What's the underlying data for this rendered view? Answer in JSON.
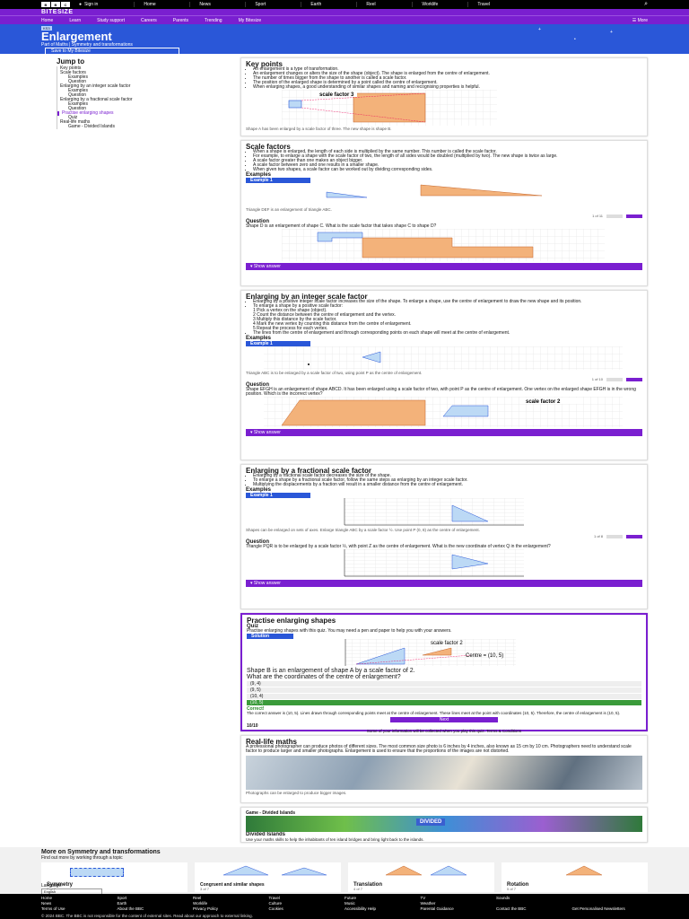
{
  "topbar": {
    "logo": [
      "B",
      "B",
      "C"
    ],
    "signin": "Sign in",
    "nav": [
      "Home",
      "News",
      "Sport",
      "Earth",
      "Reel",
      "Worklife",
      "Travel"
    ],
    "search_icon": "search-icon"
  },
  "bitesize": {
    "logo": "BITESIZE"
  },
  "subnav": {
    "items": [
      "Home",
      "Learn",
      "Study support",
      "Careers",
      "Parents",
      "Trending",
      "My Bitesize"
    ],
    "more": "More"
  },
  "hero": {
    "badge": "KS3",
    "title": "Enlargement",
    "breadcrumb": "Part of   Maths   |   Symmetry and transformations",
    "save": "Save to My Bitesize"
  },
  "sidebar": {
    "heading": "Jump to",
    "items": [
      {
        "label": "Key points",
        "sub": false
      },
      {
        "label": "Scale factors",
        "sub": false
      },
      {
        "label": "Examples",
        "sub": true
      },
      {
        "label": "Question",
        "sub": true
      },
      {
        "label": "Enlarging by an integer scale factor",
        "sub": false
      },
      {
        "label": "Examples",
        "sub": true
      },
      {
        "label": "Question",
        "sub": true
      },
      {
        "label": "Enlarging by a fractional scale factor",
        "sub": false
      },
      {
        "label": "Examples",
        "sub": true
      },
      {
        "label": "Question",
        "sub": true
      },
      {
        "label": "Practise enlarging shapes",
        "sub": false,
        "active": true
      },
      {
        "label": "Quiz",
        "sub": true
      },
      {
        "label": "Real-life maths",
        "sub": false
      },
      {
        "label": "Game - Divided Islands",
        "sub": true
      }
    ]
  },
  "keypoints": {
    "title": "Key points",
    "bullets": [
      "An enlargement is a type of transformation.",
      "An enlargement changes or alters the size of the shape (object). The shape is enlarged from the centre of enlargement.",
      "The number of times bigger from the shape to another is called a scale factor.",
      "The position of the enlarged shape is determined by a point called the centre of enlargement.",
      "When enlarging shapes, a good understanding of similar shapes and naming and recognising properties is helpful."
    ],
    "diagram_label": "scale factor 3",
    "caption": "Shape A has been enlarged by a scale factor of three. The new shape is shape B."
  },
  "scalefactors": {
    "title": "Scale factors",
    "bullets": [
      "When a shape is enlarged, the length of each side is multiplied by the same number. This number is called the scale factor.",
      "For example, to enlarge a shape with the scale factor of two, the length of all sides would be doubled (multiplied by two). The new shape is twice as large.",
      "A scale factor greater than one makes an object bigger.",
      "A scale factor between zero and one results in a smaller shape.",
      "When given two shapes, a scale factor can be worked out by dividing corresponding sides."
    ],
    "examples_heading": "Examples",
    "example_label": "Example 1",
    "example_caption": "Triangle DEF is an enlargement of triangle ABC.",
    "pager": "1 of 11",
    "question_heading": "Question",
    "question": "Shape D is an enlargement of shape C. What is the scale factor that takes shape C to shape D?",
    "show_answer": "Show answer"
  },
  "integer": {
    "title": "Enlarging by an integer scale factor",
    "bullets": [
      "Enlarging by a positive integer scale factor increases the size of the shape. To enlarge a shape, use the centre of enlargement to draw the new shape and its position.",
      "To enlarge a shape by a positive scale factor:",
      "1  Pick a vertex on the shape (object).",
      "2  Count the distance between the centre of enlargement and the vertex.",
      "3  Multiply this distance by the scale factor.",
      "4  Mark the new vertex by counting this distance from the centre of enlargement.",
      "5  Repeat the process for each vertex.",
      "The lines from the centre of enlargement and through corresponding points on each shape will meet at the centre of enlargement."
    ],
    "examples_heading": "Examples",
    "example_label": "Example 1",
    "example_caption": "Triangle ABC is to be enlarged by a scale factor of two, using point P as the centre of enlargement.",
    "pager": "1 of 10",
    "question_heading": "Question",
    "question": "Shape EFGH is an enlargement of shape ABCD. It has been enlarged using a scale factor of two, with point P as the centre of enlargement. One vertex on the enlarged shape EFGH is in the wrong position. Which is the incorrect vertex?",
    "diagram_label": "scale factor 2",
    "show_answer": "Show answer"
  },
  "fractional": {
    "title": "Enlarging by a fractional scale factor",
    "bullets": [
      "Enlarging by a fractional scale factor decreases the size of the shape.",
      "To enlarge a shape by a fractional scale factor, follow the same steps as enlarging by an integer scale factor.",
      "Multiplying the displacements by a fraction will result in a smaller distance from the centre of enlargement."
    ],
    "examples_heading": "Examples",
    "example_label": "Example 1",
    "example_caption": "Shapes can be enlarged on sets of axes. Enlarge triangle ABC by a scale factor ½. Use point P (0, 8) as the centre of enlargement.",
    "pager": "1 of 8",
    "question_heading": "Question",
    "question": "Triangle PQR is to be enlarged by a scale factor ½, with point Z as the centre of enlargement. What is the new coordinate of vertex Q in the enlargement?",
    "show_answer": "Show answer"
  },
  "practise": {
    "title": "Practise enlarging shapes",
    "quiz_heading": "Quiz",
    "quiz_intro": "Practise enlarging shapes with this quiz. You may need a pen and paper to help you with your answers.",
    "solution_label": "Solution",
    "diagram_label": "scale factor 2",
    "centre_label": "Centre = (10, 5)",
    "question": "Shape B is an enlargement of shape A by a scale factor of 2. What are the coordinates of the centre of enlargement?",
    "options": [
      "(9, 4)",
      "(9, 5)",
      "(10, 4)",
      "(10, 5)"
    ],
    "correct_label": "Correct!",
    "explain": "The correct answer is (10, 5). Lines drawn through corresponding points meet at the centre of enlargement. These lines meet at the point with coordinates (10, 5). Therefore, the centre of enlargement is (10, 5).",
    "next": "Next",
    "score": "10/10",
    "privacy": "Some of your information will be collected when you play this quiz. Terms & Conditions"
  },
  "reallife": {
    "title": "Real-life maths",
    "text": "A professional photographer can produce photos of different sizes. The most common size photo is 6 inches by 4 inches, also known as 15 cm by 10 cm. Photographers need to understand scale factor to produce larger and smaller photographs. Enlargement is used to ensure that the proportions of the images are not distorted.",
    "caption": "Photographs can be enlarged to produce bigger images."
  },
  "game": {
    "heading": "Game - Divided Islands",
    "title": "Divided Islands",
    "text": "Use your maths skills to help the inhabitants of ten island bridges and bring light back to the islands."
  },
  "more": {
    "heading": "More on Symmetry and transformations",
    "sub": "Find out more by working through a topic",
    "cards": [
      {
        "title": "Symmetry",
        "count": "7 of 7"
      },
      {
        "title": "Congruent and similar shapes",
        "count": "3 of 7"
      },
      {
        "title": "Translation",
        "count": "4 of 7"
      },
      {
        "title": "Rotation",
        "count": "5 of 7"
      }
    ]
  },
  "language": {
    "label": "Language:",
    "value": "English"
  },
  "footer": {
    "links": [
      "Home",
      "Sport",
      "Reel",
      "Travel",
      "Future",
      "TV",
      "Sounds",
      "",
      "News",
      "Earth",
      "Worklife",
      "Culture",
      "Music",
      "Weather",
      "",
      "",
      "Terms of Use",
      "About the BBC",
      "Privacy Policy",
      "Cookies",
      "Accessibility Help",
      "Parental Guidance",
      "Contact the BBC",
      "Get Personalised Newsletters"
    ],
    "legal": "© 2024 BBC. The BBC is not responsible for the content of external sites. Read about our approach to external linking."
  },
  "colors": {
    "purple": "#7a1fd0",
    "blue": "#2a57d8",
    "shape_a": "#bcd9f5",
    "shape_b": "#f3b27a"
  }
}
